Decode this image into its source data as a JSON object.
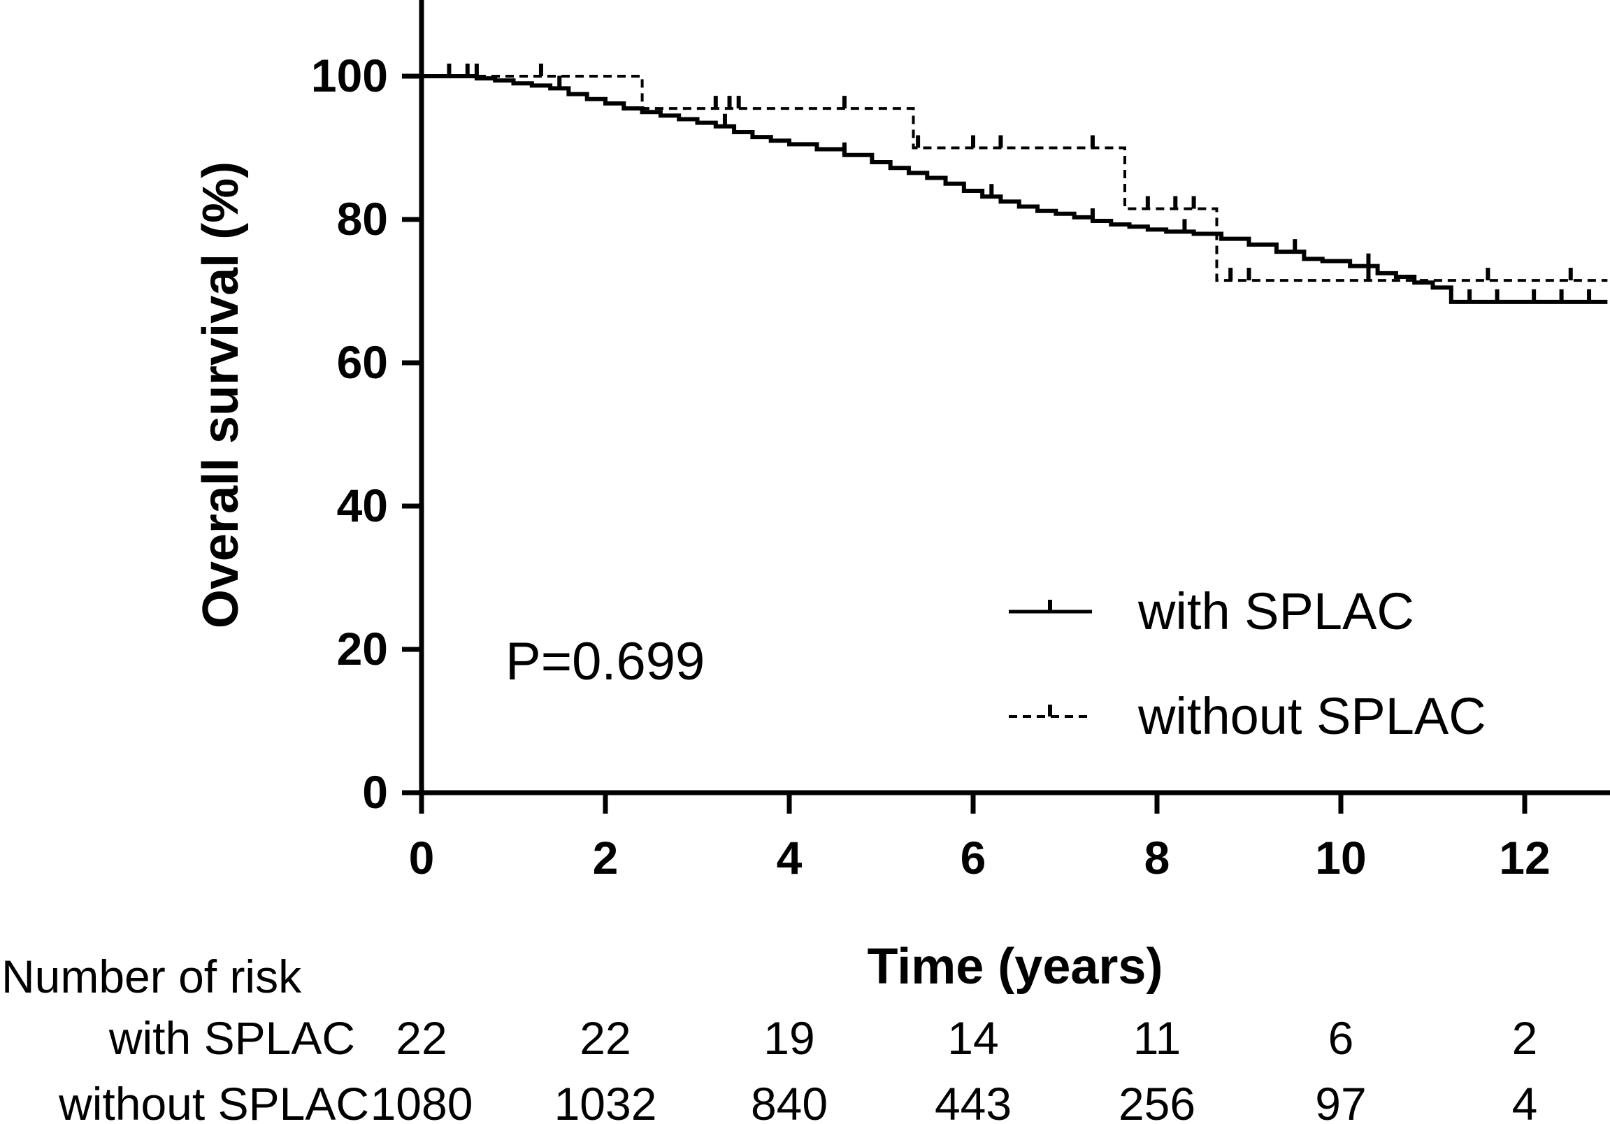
{
  "chart_data": {
    "type": "line",
    "subtype": "kaplan-meier",
    "title": "",
    "xlabel": "Time (years)",
    "ylabel": "Overall survival (%)",
    "xlim": [
      0,
      13
    ],
    "ylim": [
      0,
      110
    ],
    "x_ticks": [
      0,
      2,
      4,
      6,
      8,
      10,
      12
    ],
    "x_tick_labels": [
      "0",
      "2",
      "4",
      "6",
      "8",
      "10",
      "12"
    ],
    "y_ticks": [
      0,
      20,
      40,
      60,
      80,
      100
    ],
    "y_tick_labels": [
      "0",
      "20",
      "40",
      "60",
      "80",
      "100"
    ],
    "grid": false,
    "legend_position": "bottom-right",
    "series": [
      {
        "name": "with SPLAC",
        "line_style": "solid",
        "x": [
          0,
          0.4,
          0.6,
          0.8,
          1.0,
          1.2,
          1.4,
          1.6,
          1.8,
          2.0,
          2.2,
          2.4,
          2.6,
          2.8,
          3.0,
          3.2,
          3.4,
          3.6,
          3.8,
          4.0,
          4.3,
          4.6,
          4.9,
          5.1,
          5.3,
          5.5,
          5.7,
          5.9,
          6.1,
          6.3,
          6.5,
          6.7,
          6.9,
          7.1,
          7.3,
          7.5,
          7.7,
          7.9,
          8.1,
          8.4,
          8.7,
          9.0,
          9.3,
          9.6,
          9.8,
          10.1,
          10.4,
          10.6,
          10.8,
          11.0,
          11.2,
          12.9
        ],
        "y": [
          100,
          100,
          99.7,
          99.4,
          99.0,
          98.7,
          98.3,
          97.5,
          96.8,
          96.2,
          95.5,
          95.0,
          94.5,
          94.0,
          93.5,
          93.0,
          92.2,
          91.5,
          91.0,
          90.5,
          89.8,
          89.0,
          88.0,
          87.2,
          86.5,
          85.8,
          85.0,
          84.0,
          83.2,
          82.5,
          81.8,
          81.2,
          80.8,
          80.3,
          79.8,
          79.3,
          79.0,
          78.6,
          78.3,
          78.0,
          77.3,
          76.5,
          75.5,
          74.5,
          74.2,
          73.5,
          72.5,
          72.0,
          71.2,
          70.5,
          68.5,
          68.5
        ],
        "censor_x": [
          0.5,
          1.5,
          3.3,
          4.6,
          6.2,
          7.3,
          8.3,
          9.5,
          10.3,
          11.4,
          11.7,
          12.1,
          12.4,
          12.7
        ]
      },
      {
        "name": "without SPLAC",
        "line_style": "dashed",
        "x": [
          0,
          2.4,
          5.35,
          7.65,
          8.65,
          12.9
        ],
        "y": [
          100,
          95.5,
          90.0,
          81.5,
          71.5,
          71.5
        ],
        "censor_x": [
          0.3,
          0.6,
          1.3,
          3.2,
          3.35,
          3.45,
          4.6,
          5.4,
          6.0,
          6.3,
          7.3,
          7.9,
          8.2,
          8.4,
          8.8,
          9.0,
          10.3,
          11.6,
          12.5
        ]
      }
    ],
    "annotations": [
      "P=0.699"
    ],
    "risk_table": {
      "title": "Number of risk",
      "times": [
        0,
        2,
        4,
        6,
        8,
        10,
        12
      ],
      "rows": [
        {
          "label": "with SPLAC",
          "values": [
            "22",
            "22",
            "19",
            "14",
            "11",
            "6",
            "2"
          ]
        },
        {
          "label": "without SPLAC",
          "values": [
            "1080",
            "1032",
            "840",
            "443",
            "256",
            "97",
            "4"
          ]
        }
      ]
    }
  }
}
